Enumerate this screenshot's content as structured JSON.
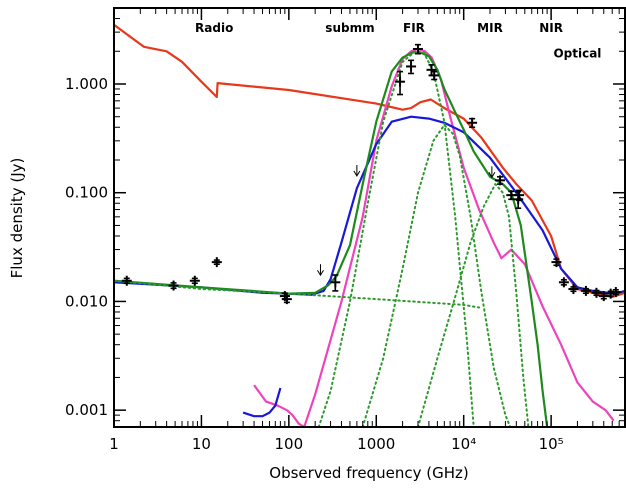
{
  "chart_data": {
    "type": "line",
    "xlabel": "Observed frequency (GHz)",
    "ylabel": "Flux density (Jy)",
    "x_scale": "log",
    "y_scale": "log",
    "xlim": [
      1,
      700000
    ],
    "ylim": [
      0.0007,
      5.0
    ],
    "grid": false,
    "x_ticks": [
      {
        "value": 1,
        "label": "1"
      },
      {
        "value": 10,
        "label": "10"
      },
      {
        "value": 100,
        "label": "100"
      },
      {
        "value": 1000,
        "label": "1000"
      },
      {
        "value": 10000,
        "label": "10⁴"
      },
      {
        "value": 100000,
        "label": "10⁵"
      }
    ],
    "y_ticks": [
      {
        "value": 0.001,
        "label": "0.001"
      },
      {
        "value": 0.01,
        "label": "0.010"
      },
      {
        "value": 0.1,
        "label": "0.100"
      },
      {
        "value": 1.0,
        "label": "1.000"
      }
    ],
    "region_labels": [
      {
        "text": "Radio",
        "x": 14,
        "y": 3.0
      },
      {
        "text": "submm",
        "x": 500,
        "y": 3.0
      },
      {
        "text": "FIR",
        "x": 2700,
        "y": 3.0
      },
      {
        "text": "MIR",
        "x": 20000,
        "y": 3.0
      },
      {
        "text": "NIR",
        "x": 100000,
        "y": 3.0
      },
      {
        "text": "Optical",
        "x": 200000,
        "y": 1.75
      }
    ],
    "series": [
      {
        "color": "#e8381c",
        "style": "solid",
        "x": [
          1,
          2.2,
          4,
          6,
          10,
          15,
          15.3,
          100,
          1000,
          2000,
          2500,
          3200,
          4200,
          6000,
          10000,
          16000,
          28000,
          40000,
          60000,
          100000,
          130000,
          200000,
          300000,
          500000,
          700000
        ],
        "y": [
          3.5,
          2.2,
          2.0,
          1.6,
          1.05,
          0.76,
          1.02,
          0.88,
          0.66,
          0.58,
          0.6,
          0.68,
          0.72,
          0.6,
          0.48,
          0.32,
          0.17,
          0.12,
          0.085,
          0.04,
          0.02,
          0.013,
          0.012,
          0.011,
          0.012
        ]
      },
      {
        "color": "#ee44bb",
        "style": "solid",
        "x": [
          40,
          55,
          75,
          95,
          110,
          130,
          150,
          200,
          400,
          700,
          1000,
          1500,
          2000,
          2500,
          3000,
          3600,
          4300,
          5500,
          7000,
          10000,
          15000,
          22000,
          27000,
          35000,
          50000,
          80000,
          130000,
          200000,
          300000,
          420000,
          520000
        ],
        "y": [
          0.0017,
          0.0012,
          0.0011,
          0.001,
          0.0009,
          0.00075,
          0.0007,
          0.0014,
          0.01,
          0.06,
          0.3,
          0.95,
          1.7,
          2.0,
          2.1,
          2.0,
          1.75,
          1.1,
          0.5,
          0.17,
          0.07,
          0.035,
          0.025,
          0.03,
          0.022,
          0.009,
          0.004,
          0.0018,
          0.0012,
          0.001,
          0.0008
        ]
      },
      {
        "color": "#1818d8",
        "style": "solid",
        "x": [
          1,
          10,
          50,
          100,
          180,
          250,
          300,
          400,
          600,
          1000,
          1500,
          2500,
          4000,
          6000,
          10000,
          20000,
          40000,
          80000,
          130000,
          200000,
          300000,
          450000,
          550000,
          700000
        ],
        "y": [
          0.015,
          0.0135,
          0.012,
          0.0118,
          0.0115,
          0.0125,
          0.016,
          0.035,
          0.11,
          0.28,
          0.45,
          0.5,
          0.48,
          0.44,
          0.36,
          0.21,
          0.1,
          0.045,
          0.02,
          0.0135,
          0.0125,
          0.012,
          0.0118,
          0.0125
        ]
      },
      {
        "color": "#1818d8",
        "style": "solid",
        "x": [
          30,
          40,
          50,
          60,
          70,
          80
        ],
        "y": [
          0.00095,
          0.00088,
          0.00088,
          0.00095,
          0.0011,
          0.0016
        ]
      },
      {
        "color": "#1e8a1e",
        "style": "solid",
        "x": [
          1,
          10,
          50,
          100,
          200,
          280,
          350,
          500,
          700,
          1000,
          1500,
          2000,
          2600,
          3200,
          4000,
          5000,
          6000,
          8000,
          10000,
          13000,
          20000,
          28000,
          35000,
          45000,
          60000,
          70000,
          80000,
          90000
        ],
        "y": [
          0.0155,
          0.0135,
          0.0123,
          0.0118,
          0.012,
          0.014,
          0.017,
          0.033,
          0.12,
          0.45,
          1.3,
          1.75,
          1.95,
          1.95,
          1.8,
          1.35,
          0.9,
          0.55,
          0.38,
          0.24,
          0.14,
          0.12,
          0.1,
          0.05,
          0.01,
          0.004,
          0.0015,
          0.0007
        ]
      },
      {
        "color": "#2b9a2b",
        "style": "dotted",
        "x": [
          1,
          10,
          100,
          1000,
          10000,
          15000
        ],
        "y": [
          0.0155,
          0.013,
          0.0118,
          0.0105,
          0.0093,
          0.0088
        ]
      },
      {
        "color": "#2b9a2b",
        "style": "dotted",
        "x": [
          220,
          300,
          500,
          800,
          1200,
          2000,
          2800,
          3500,
          4500,
          6000,
          8000,
          11000,
          13000
        ],
        "y": [
          0.0007,
          0.0015,
          0.01,
          0.08,
          0.45,
          1.6,
          2.0,
          1.95,
          1.3,
          0.45,
          0.06,
          0.004,
          0.0007
        ]
      },
      {
        "color": "#2b9a2b",
        "style": "dotted",
        "x": [
          700,
          1200,
          2000,
          3000,
          4500,
          6000,
          7500,
          9000,
          12000,
          16000,
          22000,
          30000,
          34000
        ],
        "y": [
          0.0007,
          0.003,
          0.02,
          0.1,
          0.3,
          0.42,
          0.35,
          0.22,
          0.06,
          0.012,
          0.0025,
          0.0009,
          0.0007
        ]
      },
      {
        "color": "#2b9a2b",
        "style": "dotted",
        "x": [
          3000,
          5000,
          8000,
          12000,
          17000,
          23000,
          28000,
          33000,
          40000,
          48000,
          55000
        ],
        "y": [
          0.0007,
          0.003,
          0.011,
          0.035,
          0.075,
          0.12,
          0.1,
          0.06,
          0.012,
          0.002,
          0.0007
        ]
      }
    ],
    "data_points": [
      {
        "x": 1.4,
        "y": 0.0155,
        "yerr": 0.0008
      },
      {
        "x": 4.8,
        "y": 0.014,
        "yerr": 0.0008
      },
      {
        "x": 8.4,
        "y": 0.0155,
        "yerr": 0.0008
      },
      {
        "x": 15,
        "y": 0.023,
        "yerr": 0.001
      },
      {
        "x": 90,
        "y": 0.0112,
        "yerr": 0.0007
      },
      {
        "x": 95,
        "y": 0.0105,
        "yerr": 0.0007
      },
      {
        "x": 340,
        "y": 0.015,
        "yerr": 0.0025
      },
      {
        "x": 1870,
        "y": 1.05,
        "yerr": 0.25
      },
      {
        "x": 2500,
        "y": 1.45,
        "yerr": 0.2
      },
      {
        "x": 2998,
        "y": 2.1,
        "yerr": 0.2
      },
      {
        "x": 4283,
        "y": 1.35,
        "yerr": 0.15
      },
      {
        "x": 4600,
        "y": 1.2,
        "yerr": 0.1
      },
      {
        "x": 12490,
        "y": 0.44,
        "yerr": 0.04
      },
      {
        "x": 26000,
        "y": 0.13,
        "yerr": 0.01
      },
      {
        "x": 35000,
        "y": 0.095,
        "yerr": 0.008
      },
      {
        "x": 42000,
        "y": 0.087,
        "yerr": 0.015
      },
      {
        "x": 43000,
        "y": 0.095,
        "yerr": 0.01
      },
      {
        "x": 115000,
        "y": 0.023,
        "yerr": 0.0015
      },
      {
        "x": 140000,
        "y": 0.015,
        "yerr": 0.0008
      },
      {
        "x": 180000,
        "y": 0.013,
        "yerr": 0.0006
      },
      {
        "x": 250000,
        "y": 0.0125,
        "yerr": 0.0006
      },
      {
        "x": 330000,
        "y": 0.012,
        "yerr": 0.0006
      },
      {
        "x": 400000,
        "y": 0.0112,
        "yerr": 0.0006
      },
      {
        "x": 480000,
        "y": 0.0118,
        "yerr": 0.0006
      },
      {
        "x": 550000,
        "y": 0.0122,
        "yerr": 0.0006
      }
    ],
    "upper_limits": [
      {
        "x": 230,
        "y": 0.022
      },
      {
        "x": 600,
        "y": 0.18
      },
      {
        "x": 21000,
        "y": 0.175
      }
    ]
  }
}
